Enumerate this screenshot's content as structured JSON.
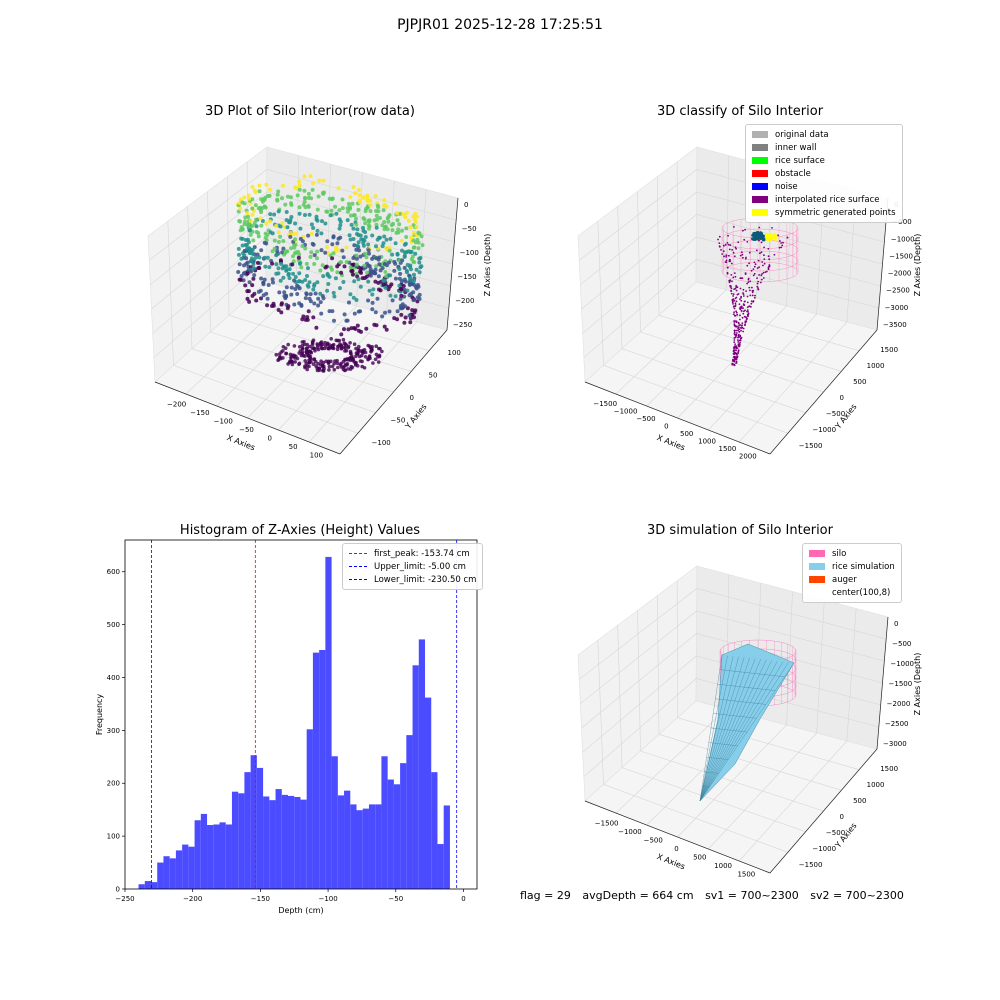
{
  "figure_title": "PJPJR01 2025-12-28 17:25:51",
  "info": {
    "flag": "flag = 29",
    "avg_depth": "avgDepth = 664 cm",
    "sv1": "sv1 = 700~2300",
    "sv2": "sv2 = 700~2300"
  },
  "chart_data": [
    {
      "type": "scatter3d",
      "title": "3D Plot of Silo Interior(row data)",
      "xlabel": "X Axies",
      "ylabel": "Y Axies",
      "zlabel": "Z Axies (Depth)",
      "x_ticks": [
        "−200",
        "−150",
        "−100",
        "−50",
        "0",
        "50",
        "100"
      ],
      "y_ticks": [
        "−100",
        "−50",
        "0",
        "50",
        "100"
      ],
      "z_ticks": [
        "0",
        "−50",
        "−100",
        "−150",
        "−200",
        "−250"
      ],
      "xlim": [
        -225,
        110
      ],
      "ylim": [
        -120,
        125
      ],
      "zlim": [
        -260,
        5
      ],
      "colormap": [
        "#440154",
        "#3b528b",
        "#21918c",
        "#5ec962",
        "#fde725"
      ]
    },
    {
      "type": "scatter3d",
      "title": "3D classify of Silo Interior",
      "xlabel": "X Axies",
      "ylabel": "Y Axies",
      "zlabel": "Z Axies (Depth)",
      "x_ticks": [
        "−1500",
        "−1000",
        "−500",
        "0",
        "500",
        "1000",
        "1500",
        "2000"
      ],
      "y_ticks": [
        "−1500",
        "−1000",
        "−500",
        "0",
        "500",
        "1000",
        "1500"
      ],
      "z_ticks": [
        "0",
        "−500",
        "−1000",
        "−1500",
        "−2000",
        "−2500",
        "−3000",
        "−3500"
      ],
      "legend": [
        {
          "label": "original data",
          "color": "#b0b0b0"
        },
        {
          "label": "inner wall",
          "color": "#808080"
        },
        {
          "label": "rice surface",
          "color": "#00ff00"
        },
        {
          "label": "obstacle",
          "color": "#ff0000"
        },
        {
          "label": "noise",
          "color": "#0000ff"
        },
        {
          "label": "interpolated rice surface",
          "color": "#800080"
        },
        {
          "label": "symmetric generated points",
          "color": "#ffff00"
        }
      ],
      "legend_position": "upper right"
    },
    {
      "type": "bar",
      "title": "Histogram of Z-Axies (Height) Values",
      "xlabel": "Depth (cm)",
      "ylabel": "Frequency",
      "xlim": [
        -250,
        10
      ],
      "ylim": [
        0,
        660
      ],
      "x_ticks": [
        -250,
        -200,
        -150,
        -100,
        -50,
        0
      ],
      "y_ticks": [
        0,
        100,
        200,
        300,
        400,
        500,
        600
      ],
      "bar_color": "#4b4bff",
      "bins": [
        {
          "x0": -240,
          "x1": -235.4,
          "value": 9
        },
        {
          "x0": -235.4,
          "x1": -230.8,
          "value": 15
        },
        {
          "x0": -230.8,
          "x1": -226.2,
          "value": 13
        },
        {
          "x0": -226.2,
          "x1": -221.6,
          "value": 50
        },
        {
          "x0": -221.6,
          "x1": -217.0,
          "value": 62
        },
        {
          "x0": -217.0,
          "x1": -212.4,
          "value": 58
        },
        {
          "x0": -212.4,
          "x1": -207.8,
          "value": 73
        },
        {
          "x0": -207.8,
          "x1": -203.2,
          "value": 84
        },
        {
          "x0": -203.2,
          "x1": -198.6,
          "value": 80
        },
        {
          "x0": -198.6,
          "x1": -194.0,
          "value": 130
        },
        {
          "x0": -194.0,
          "x1": -189.4,
          "value": 142
        },
        {
          "x0": -189.4,
          "x1": -184.8,
          "value": 121
        },
        {
          "x0": -184.8,
          "x1": -180.2,
          "value": 122
        },
        {
          "x0": -180.2,
          "x1": -175.6,
          "value": 126
        },
        {
          "x0": -175.6,
          "x1": -171.0,
          "value": 122
        },
        {
          "x0": -171.0,
          "x1": -166.4,
          "value": 184
        },
        {
          "x0": -166.4,
          "x1": -161.8,
          "value": 181
        },
        {
          "x0": -161.8,
          "x1": -157.2,
          "value": 221
        },
        {
          "x0": -157.2,
          "x1": -152.6,
          "value": 253
        },
        {
          "x0": -152.6,
          "x1": -148.0,
          "value": 229
        },
        {
          "x0": -148.0,
          "x1": -143.4,
          "value": 175
        },
        {
          "x0": -143.4,
          "x1": -138.8,
          "value": 168
        },
        {
          "x0": -138.8,
          "x1": -134.2,
          "value": 189
        },
        {
          "x0": -134.2,
          "x1": -129.6,
          "value": 178
        },
        {
          "x0": -129.6,
          "x1": -125.0,
          "value": 176
        },
        {
          "x0": -125.0,
          "x1": -120.4,
          "value": 174
        },
        {
          "x0": -120.4,
          "x1": -115.8,
          "value": 169
        },
        {
          "x0": -115.8,
          "x1": -111.2,
          "value": 302
        },
        {
          "x0": -111.2,
          "x1": -106.6,
          "value": 447
        },
        {
          "x0": -106.6,
          "x1": -102.0,
          "value": 452
        },
        {
          "x0": -102.0,
          "x1": -97.4,
          "value": 628
        },
        {
          "x0": -97.4,
          "x1": -92.8,
          "value": 251
        },
        {
          "x0": -92.8,
          "x1": -88.2,
          "value": 177
        },
        {
          "x0": -88.2,
          "x1": -83.6,
          "value": 186
        },
        {
          "x0": -83.6,
          "x1": -79.0,
          "value": 160
        },
        {
          "x0": -79.0,
          "x1": -74.4,
          "value": 149
        },
        {
          "x0": -74.4,
          "x1": -69.8,
          "value": 152
        },
        {
          "x0": -69.8,
          "x1": -65.2,
          "value": 160
        },
        {
          "x0": -65.2,
          "x1": -60.6,
          "value": 160
        },
        {
          "x0": -60.6,
          "x1": -56.0,
          "value": 251
        },
        {
          "x0": -56.0,
          "x1": -51.4,
          "value": 207
        },
        {
          "x0": -51.4,
          "x1": -46.8,
          "value": 198
        },
        {
          "x0": -46.8,
          "x1": -42.2,
          "value": 238
        },
        {
          "x0": -42.2,
          "x1": -37.6,
          "value": 291
        },
        {
          "x0": -37.6,
          "x1": -33.0,
          "value": 423
        },
        {
          "x0": -33.0,
          "x1": -28.4,
          "value": 472
        },
        {
          "x0": -28.4,
          "x1": -23.8,
          "value": 362
        },
        {
          "x0": -23.8,
          "x1": -19.2,
          "value": 221
        },
        {
          "x0": -19.2,
          "x1": -14.6,
          "value": 85
        },
        {
          "x0": -14.6,
          "x1": -10.0,
          "value": 158
        }
      ],
      "vlines": [
        {
          "x": -153.74,
          "color": "#ff0000",
          "label": "first_peak: -153.74 cm"
        },
        {
          "x": -5.0,
          "color": "#0000ff",
          "label": "Upper_limit: -5.00 cm"
        },
        {
          "x": -230.5,
          "color": "#0000ff",
          "label": "Lower_limit: -230.50 cm"
        }
      ],
      "legend_position": "upper right"
    },
    {
      "type": "surface3d",
      "title": "3D simulation of Silo Interior",
      "xlabel": "X Axies",
      "ylabel": "Y Axies",
      "zlabel": "Z Axies (Depth)",
      "x_ticks": [
        "−1500",
        "−1000",
        "−500",
        "0",
        "500",
        "1000",
        "1500"
      ],
      "y_ticks": [
        "−1500",
        "−1000",
        "−500",
        "0",
        "500",
        "1000",
        "1500"
      ],
      "z_ticks": [
        "0",
        "−500",
        "−1000",
        "−1500",
        "−2000",
        "−2500",
        "−3000"
      ],
      "legend": [
        {
          "label": "silo",
          "color": "#ff69b4"
        },
        {
          "label": "rice simulation",
          "color": "#87ceeb"
        },
        {
          "label": "auger",
          "color": "#ff4500"
        },
        {
          "label": "center(100,8)",
          "color": ""
        }
      ],
      "legend_position": "upper right"
    }
  ]
}
